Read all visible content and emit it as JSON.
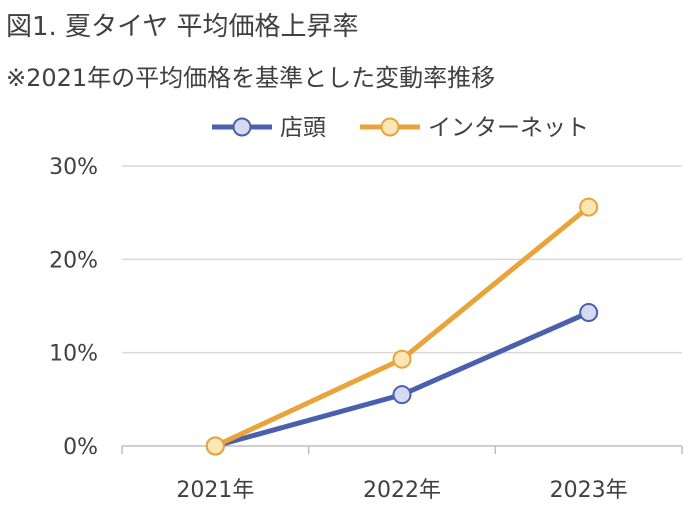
{
  "title": "図1. 夏タイヤ 平均価格上昇率",
  "subtitle": "※2021年の平均価格を基準とした変動率推移",
  "chart_data": {
    "type": "line",
    "categories": [
      "2021年",
      "2022年",
      "2023年"
    ],
    "series": [
      {
        "name": "店頭",
        "values": [
          0,
          5.5,
          14.3
        ],
        "color": "#4a5fad",
        "marker_fill": "#d6daf0"
      },
      {
        "name": "インターネット",
        "values": [
          0,
          9.3,
          25.6
        ],
        "color": "#e8a43a",
        "marker_fill": "#fde7b8"
      }
    ],
    "ylim": [
      0,
      30
    ],
    "yticks": [
      0,
      10,
      20,
      30
    ],
    "ytick_labels": [
      "0%",
      "10%",
      "20%",
      "30%"
    ],
    "grid": true,
    "legend_position": "top"
  }
}
